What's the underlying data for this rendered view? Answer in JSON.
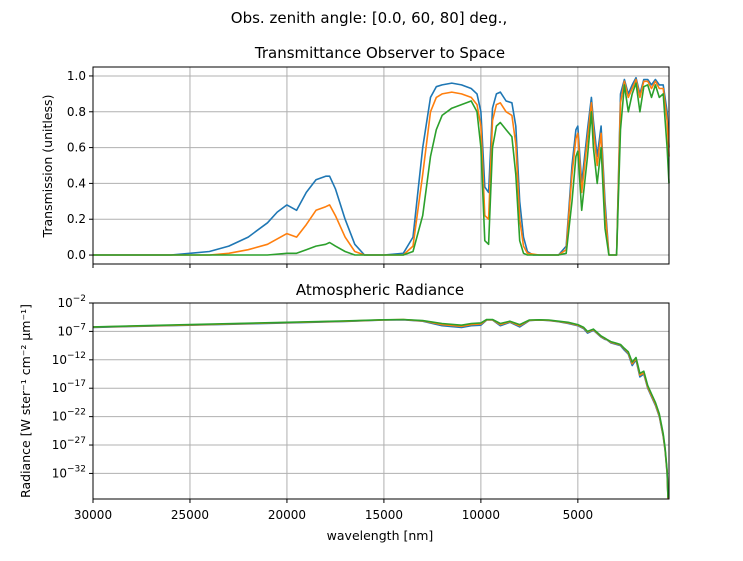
{
  "figure": {
    "suptitle": "Obs. zenith angle: [0.0, 60, 80] deg.,"
  },
  "colors": {
    "series0": "#1f77b4",
    "series1": "#ff7f0e",
    "series2": "#2ca02c",
    "grid": "#b0b0b0"
  },
  "chart_data": [
    {
      "type": "line",
      "title": "Transmittance Observer to Space",
      "xlabel": "",
      "ylabel": "Transmission (unitless)",
      "xlim": [
        30000,
        300
      ],
      "ylim": [
        -0.05,
        1.05
      ],
      "x_ticks": [
        30000,
        25000,
        20000,
        15000,
        10000,
        5000
      ],
      "y_ticks": [
        0.0,
        0.2,
        0.4,
        0.6,
        0.8,
        1.0
      ],
      "y_tick_labels": [
        "0.0",
        "0.2",
        "0.4",
        "0.6",
        "0.8",
        "1.0"
      ],
      "grid": true,
      "series": [
        {
          "color": "#1f77b4",
          "x": [
            30000,
            26000,
            25000,
            24000,
            23000,
            22000,
            21000,
            20500,
            20000,
            19500,
            19000,
            18500,
            18000,
            17800,
            17500,
            17000,
            16500,
            16000,
            15500,
            15000,
            14000,
            13500,
            13000,
            12600,
            12300,
            12000,
            11500,
            11000,
            10500,
            10200,
            10000,
            9800,
            9600,
            9400,
            9200,
            9000,
            8700,
            8400,
            8200,
            8000,
            7800,
            7600,
            7300,
            7000,
            6000,
            5600,
            5300,
            5100,
            5000,
            4800,
            4500,
            4300,
            4200,
            4000,
            3800,
            3600,
            3400,
            3000,
            2800,
            2600,
            2400,
            2200,
            2000,
            1800,
            1600,
            1400,
            1200,
            1000,
            800,
            600,
            400,
            300
          ],
          "y": [
            0.0,
            0.0,
            0.01,
            0.02,
            0.05,
            0.1,
            0.18,
            0.24,
            0.28,
            0.25,
            0.35,
            0.42,
            0.44,
            0.44,
            0.37,
            0.2,
            0.06,
            0.0,
            0.0,
            0.0,
            0.01,
            0.1,
            0.6,
            0.88,
            0.94,
            0.95,
            0.96,
            0.95,
            0.93,
            0.9,
            0.8,
            0.38,
            0.35,
            0.82,
            0.9,
            0.91,
            0.86,
            0.85,
            0.72,
            0.3,
            0.1,
            0.02,
            0.0,
            0.0,
            0.0,
            0.05,
            0.5,
            0.7,
            0.72,
            0.4,
            0.7,
            0.88,
            0.75,
            0.55,
            0.72,
            0.3,
            0.0,
            0.0,
            0.9,
            0.98,
            0.9,
            0.95,
            0.99,
            0.9,
            0.98,
            0.98,
            0.95,
            0.98,
            0.95,
            0.95,
            0.8,
            0.6
          ]
        },
        {
          "color": "#ff7f0e",
          "x": [
            30000,
            24000,
            23000,
            22000,
            21000,
            20500,
            20000,
            19500,
            19000,
            18500,
            18000,
            17800,
            17500,
            17000,
            16500,
            16000,
            15000,
            14000,
            13500,
            13000,
            12600,
            12300,
            12000,
            11500,
            11000,
            10500,
            10200,
            10000,
            9800,
            9600,
            9400,
            9200,
            9000,
            8700,
            8400,
            8200,
            8000,
            7800,
            7600,
            7000,
            6000,
            5600,
            5300,
            5100,
            5000,
            4800,
            4500,
            4300,
            4200,
            4000,
            3800,
            3600,
            3400,
            3000,
            2800,
            2600,
            2400,
            2200,
            2000,
            1800,
            1600,
            1400,
            1200,
            1000,
            800,
            600,
            400,
            300
          ],
          "y": [
            0.0,
            0.0,
            0.01,
            0.03,
            0.06,
            0.09,
            0.12,
            0.1,
            0.17,
            0.25,
            0.27,
            0.28,
            0.22,
            0.1,
            0.02,
            0.0,
            0.0,
            0.0,
            0.05,
            0.45,
            0.8,
            0.88,
            0.9,
            0.91,
            0.9,
            0.88,
            0.84,
            0.72,
            0.22,
            0.2,
            0.75,
            0.84,
            0.85,
            0.8,
            0.78,
            0.62,
            0.2,
            0.05,
            0.01,
            0.0,
            0.0,
            0.03,
            0.45,
            0.65,
            0.68,
            0.35,
            0.65,
            0.85,
            0.7,
            0.5,
            0.68,
            0.25,
            0.0,
            0.0,
            0.85,
            0.97,
            0.88,
            0.93,
            0.98,
            0.88,
            0.97,
            0.97,
            0.93,
            0.97,
            0.93,
            0.93,
            0.75,
            0.55
          ]
        },
        {
          "color": "#2ca02c",
          "x": [
            30000,
            21000,
            20000,
            19500,
            19000,
            18500,
            18000,
            17800,
            17500,
            17000,
            16500,
            16000,
            14000,
            13500,
            13000,
            12600,
            12300,
            12000,
            11500,
            11000,
            10500,
            10200,
            10000,
            9800,
            9600,
            9400,
            9200,
            9000,
            8700,
            8400,
            8200,
            8000,
            7800,
            7600,
            7000,
            6000,
            5600,
            5300,
            5100,
            5000,
            4800,
            4500,
            4300,
            4200,
            4000,
            3800,
            3600,
            3400,
            3000,
            2800,
            2600,
            2400,
            2200,
            2000,
            1800,
            1600,
            1400,
            1200,
            1000,
            800,
            600,
            400,
            300
          ],
          "y": [
            0.0,
            0.0,
            0.01,
            0.01,
            0.03,
            0.05,
            0.06,
            0.07,
            0.05,
            0.02,
            0.0,
            0.0,
            0.0,
            0.02,
            0.22,
            0.55,
            0.7,
            0.78,
            0.82,
            0.84,
            0.86,
            0.8,
            0.6,
            0.08,
            0.06,
            0.6,
            0.72,
            0.74,
            0.7,
            0.66,
            0.45,
            0.08,
            0.01,
            0.0,
            0.0,
            0.0,
            0.01,
            0.3,
            0.55,
            0.58,
            0.25,
            0.55,
            0.8,
            0.6,
            0.4,
            0.6,
            0.15,
            0.0,
            0.0,
            0.7,
            0.95,
            0.8,
            0.9,
            0.96,
            0.8,
            0.94,
            0.95,
            0.88,
            0.95,
            0.88,
            0.9,
            0.6,
            0.4
          ]
        }
      ]
    },
    {
      "type": "line",
      "title": "Atmospheric Radiance",
      "xlabel": "wavelength [nm]",
      "ylabel": "Radiance [W ster⁻¹ cm⁻² μm⁻¹]",
      "xlim": [
        30000,
        300
      ],
      "ylim_log10": [
        -36.5,
        -2
      ],
      "yscale": "log",
      "x_ticks": [
        30000,
        25000,
        20000,
        15000,
        10000,
        5000
      ],
      "x_tick_labels": [
        "30000",
        "25000",
        "20000",
        "15000",
        "10000",
        "5000"
      ],
      "y_ticks_log10": [
        -2,
        -7,
        -12,
        -17,
        -22,
        -27,
        -32
      ],
      "y_tick_base": "10",
      "y_tick_exponents": [
        "-2",
        "-7",
        "-12",
        "-17",
        "-22",
        "-27",
        "-32"
      ],
      "grid": true,
      "series": [
        {
          "color": "#1f77b4",
          "x": [
            30000,
            25000,
            20000,
            17000,
            15000,
            14000,
            13000,
            12000,
            11000,
            10500,
            10000,
            9700,
            9400,
            9000,
            8500,
            8000,
            7500,
            7000,
            6500,
            6000,
            5500,
            5000,
            4700,
            4500,
            4200,
            4000,
            3800,
            3600,
            3500,
            3300,
            3000,
            2800,
            2600,
            2400,
            2200,
            2000,
            1800,
            1600,
            1400,
            1200,
            1000,
            800,
            600,
            500,
            400,
            350
          ],
          "log10_y": [
            -6.3,
            -5.9,
            -5.5,
            -5.25,
            -5.0,
            -4.95,
            -5.2,
            -6.0,
            -6.3,
            -6.0,
            -5.9,
            -5.0,
            -5.0,
            -6.0,
            -5.4,
            -6.2,
            -5.1,
            -5.0,
            -5.1,
            -5.3,
            -5.6,
            -6.0,
            -6.5,
            -7.3,
            -6.8,
            -7.4,
            -8.0,
            -8.4,
            -8.5,
            -9.0,
            -9.3,
            -9.5,
            -10.3,
            -11.0,
            -13.0,
            -12.0,
            -15.0,
            -14.5,
            -17.0,
            -18.5,
            -20.0,
            -22.0,
            -25.5,
            -28.0,
            -32.0,
            -36.5
          ]
        },
        {
          "color": "#ff7f0e",
          "x": [
            30000,
            25000,
            20000,
            17000,
            15000,
            14000,
            13000,
            12000,
            11000,
            10500,
            10000,
            9700,
            9400,
            9000,
            8500,
            8000,
            7500,
            7000,
            6500,
            6000,
            5500,
            5000,
            4700,
            4500,
            4200,
            4000,
            3800,
            3600,
            3500,
            3300,
            3000,
            2800,
            2600,
            2400,
            2200,
            2000,
            1800,
            1600,
            1400,
            1200,
            1000,
            800,
            600,
            500,
            400,
            350
          ],
          "log10_y": [
            -6.25,
            -5.85,
            -5.45,
            -5.2,
            -4.98,
            -4.93,
            -5.15,
            -5.8,
            -6.1,
            -5.8,
            -5.7,
            -4.95,
            -4.95,
            -5.8,
            -5.3,
            -6.0,
            -5.05,
            -4.97,
            -5.05,
            -5.25,
            -5.5,
            -5.9,
            -6.4,
            -7.1,
            -6.7,
            -7.3,
            -7.9,
            -8.3,
            -8.45,
            -8.9,
            -9.2,
            -9.4,
            -10.1,
            -10.8,
            -12.7,
            -11.8,
            -14.7,
            -14.3,
            -16.8,
            -18.3,
            -19.8,
            -21.8,
            -25.3,
            -27.8,
            -31.8,
            -36.4
          ]
        },
        {
          "color": "#2ca02c",
          "x": [
            30000,
            25000,
            20000,
            17000,
            15000,
            14000,
            13000,
            12000,
            11000,
            10500,
            10000,
            9700,
            9400,
            9000,
            8500,
            8000,
            7500,
            7000,
            6500,
            6000,
            5500,
            5000,
            4700,
            4500,
            4200,
            4000,
            3800,
            3600,
            3500,
            3300,
            3000,
            2800,
            2600,
            2400,
            2200,
            2000,
            1800,
            1600,
            1400,
            1200,
            1000,
            800,
            600,
            500,
            400,
            350
          ],
          "log10_y": [
            -6.2,
            -5.8,
            -5.4,
            -5.15,
            -4.95,
            -4.9,
            -5.1,
            -5.6,
            -5.9,
            -5.6,
            -5.5,
            -4.9,
            -4.9,
            -5.6,
            -5.2,
            -5.8,
            -5.0,
            -4.95,
            -5.0,
            -5.2,
            -5.4,
            -5.8,
            -6.3,
            -7.0,
            -6.6,
            -7.2,
            -7.8,
            -8.2,
            -8.4,
            -8.8,
            -9.1,
            -9.3,
            -10.0,
            -10.6,
            -12.4,
            -11.6,
            -14.4,
            -14.0,
            -16.5,
            -18.0,
            -19.5,
            -21.5,
            -25.0,
            -27.5,
            -31.5,
            -36.3
          ]
        }
      ]
    }
  ]
}
